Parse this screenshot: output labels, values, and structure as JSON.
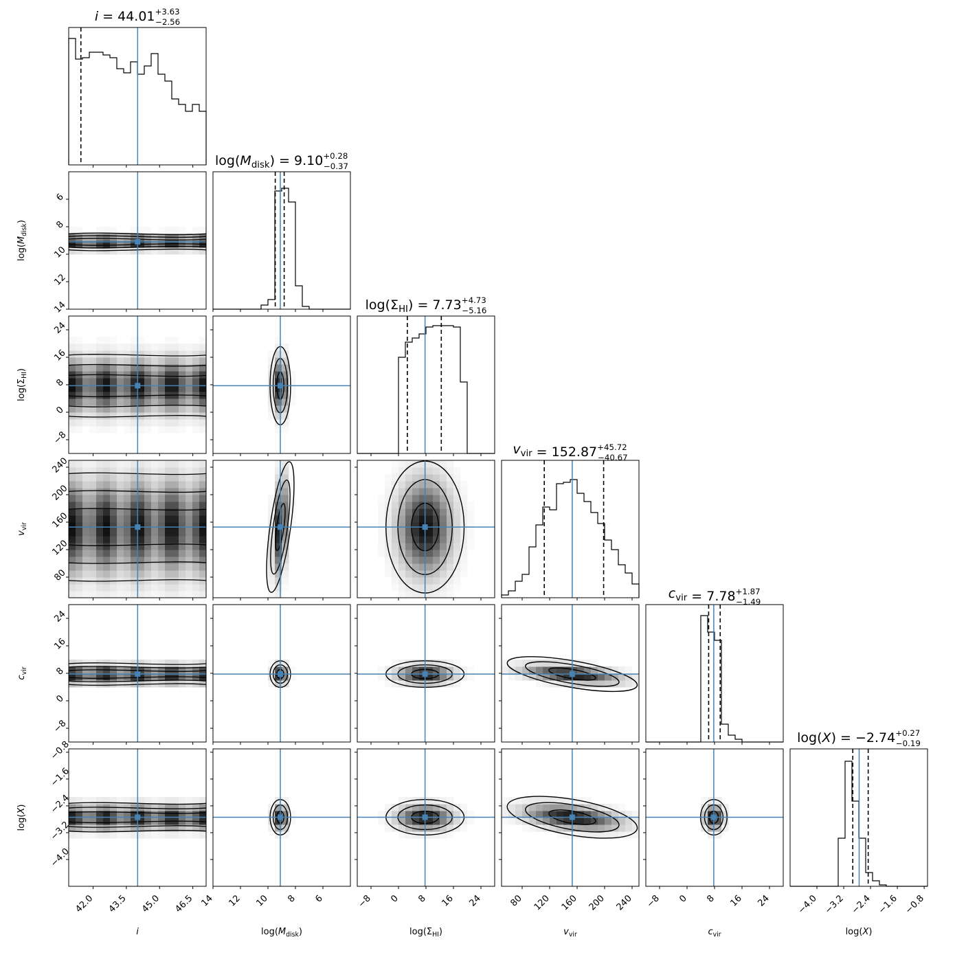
{
  "chart_data": {
    "type": "corner",
    "parameters": [
      {
        "key": "i",
        "label": "i",
        "label_main": "i",
        "label_sub": "",
        "label_log": false,
        "italic": true,
        "median": 44.01,
        "plus": 3.63,
        "minus": 2.56,
        "title_plus": "+3.63",
        "title_minus": "−2.56",
        "title_value": "44.01",
        "range": [
          40.9,
          47.1
        ],
        "q16": 41.45,
        "q84": 47.64,
        "ticks": [
          42.0,
          43.5,
          45.0,
          46.5
        ],
        "tick_labels": [
          "42.0",
          "43.5",
          "45.0",
          "46.5"
        ],
        "truth": 44.01,
        "hist": [
          0.92,
          0.77,
          0.78,
          0.82,
          0.82,
          0.8,
          0.78,
          0.7,
          0.67,
          0.75,
          0.66,
          0.72,
          0.81,
          0.66,
          0.61,
          0.48,
          0.44,
          0.39,
          0.44,
          0.39
        ]
      },
      {
        "key": "mdisk",
        "label": "log(M_disk)",
        "label_main": "M",
        "label_sub": "disk",
        "label_log": true,
        "italic": true,
        "median": 9.1,
        "plus": 0.28,
        "minus": 0.37,
        "title_plus": "+0.28",
        "title_minus": "−0.37",
        "title_value": "9.10",
        "range": [
          14.0,
          4.0
        ],
        "q16": 9.47,
        "q84": 8.82,
        "ticks": [
          14,
          12,
          10,
          8,
          6
        ],
        "tick_labels": [
          "14",
          "12",
          "10",
          "8",
          "6"
        ],
        "truth": 9.1,
        "hist": [
          0,
          0,
          0,
          0,
          0,
          0,
          0,
          0.03,
          0.07,
          0.86,
          0.88,
          0.78,
          0.17,
          0.02,
          0,
          0,
          0,
          0,
          0,
          0
        ]
      },
      {
        "key": "sigma",
        "label": "log(Σ_HI)",
        "label_main": "Σ",
        "label_sub": "HI",
        "label_log": true,
        "italic": false,
        "median": 7.73,
        "plus": 4.73,
        "minus": 5.16,
        "title_plus": "+4.73",
        "title_minus": "−5.16",
        "title_value": "7.73",
        "range": [
          -12.0,
          28.0
        ],
        "q16": 2.57,
        "q84": 12.46,
        "ticks": [
          -8,
          0,
          8,
          16,
          24
        ],
        "tick_labels": [
          "−8",
          "0",
          "8",
          "16",
          "24"
        ],
        "truth": 7.73,
        "hist": [
          0,
          0,
          0,
          0,
          0,
          0,
          0.7,
          0.81,
          0.84,
          0.87,
          0.92,
          0.93,
          0.93,
          0.93,
          0.92,
          0.52,
          0,
          0,
          0,
          0
        ]
      },
      {
        "key": "vvir",
        "label": "v_vir",
        "label_main": "v",
        "label_sub": "vir",
        "label_log": false,
        "italic": true,
        "median": 152.87,
        "plus": 45.72,
        "minus": 40.67,
        "title_plus": "+45.72",
        "title_minus": "−40.67",
        "title_value": "152.87",
        "range": [
          50,
          250
        ],
        "q16": 112.2,
        "q84": 198.59,
        "ticks": [
          80,
          120,
          160,
          200,
          240
        ],
        "tick_labels": [
          "80",
          "120",
          "160",
          "200",
          "240"
        ],
        "truth": 152.87,
        "hist": [
          0.02,
          0.05,
          0.12,
          0.17,
          0.37,
          0.53,
          0.66,
          0.64,
          0.83,
          0.84,
          0.86,
          0.76,
          0.7,
          0.62,
          0.54,
          0.42,
          0.35,
          0.24,
          0.18,
          0.1
        ]
      },
      {
        "key": "cvir",
        "label": "c_vir",
        "label_main": "c",
        "label_sub": "vir",
        "label_log": false,
        "italic": true,
        "median": 7.78,
        "plus": 1.87,
        "minus": 1.49,
        "title_plus": "+1.87",
        "title_minus": "−1.49",
        "title_value": "7.78",
        "range": [
          -12.0,
          28.0
        ],
        "q16": 6.29,
        "q84": 9.65,
        "ticks": [
          -8,
          0,
          8,
          16,
          24
        ],
        "tick_labels": [
          "−8",
          "0",
          "8",
          "16",
          "24"
        ],
        "truth": 7.78,
        "hist": [
          0,
          0,
          0,
          0,
          0,
          0,
          0,
          0,
          0.92,
          0.8,
          0.74,
          0.13,
          0.05,
          0.02,
          0,
          0,
          0,
          0,
          0,
          0
        ]
      },
      {
        "key": "x",
        "label": "log(X)",
        "label_main": "X",
        "label_sub": "",
        "label_log": true,
        "italic": true,
        "median": -2.74,
        "plus": 0.27,
        "minus": 0.19,
        "title_plus": "+0.27",
        "title_minus": "−0.19",
        "title_value": "−2.74",
        "range": [
          -4.8,
          -0.7
        ],
        "q16": -2.93,
        "q84": -2.47,
        "ticks": [
          -4.0,
          -3.2,
          -2.4,
          -1.6,
          -0.8
        ],
        "tick_labels": [
          "−4.0",
          "−3.2",
          "−2.4",
          "−1.6",
          "−0.8"
        ],
        "truth": -2.74,
        "hist": [
          0,
          0,
          0,
          0,
          0,
          0,
          0,
          0.35,
          0.91,
          0.62,
          0.35,
          0.1,
          0.04,
          0.01,
          0,
          0,
          0,
          0,
          0,
          0
        ]
      }
    ],
    "colors": {
      "truth": "#4682b4",
      "hist": "#000000",
      "quantile": "#000000",
      "contour": "#000000",
      "density": "#000000"
    },
    "show_titles": true,
    "quantiles": [
      0.16,
      0.5,
      0.84
    ]
  }
}
